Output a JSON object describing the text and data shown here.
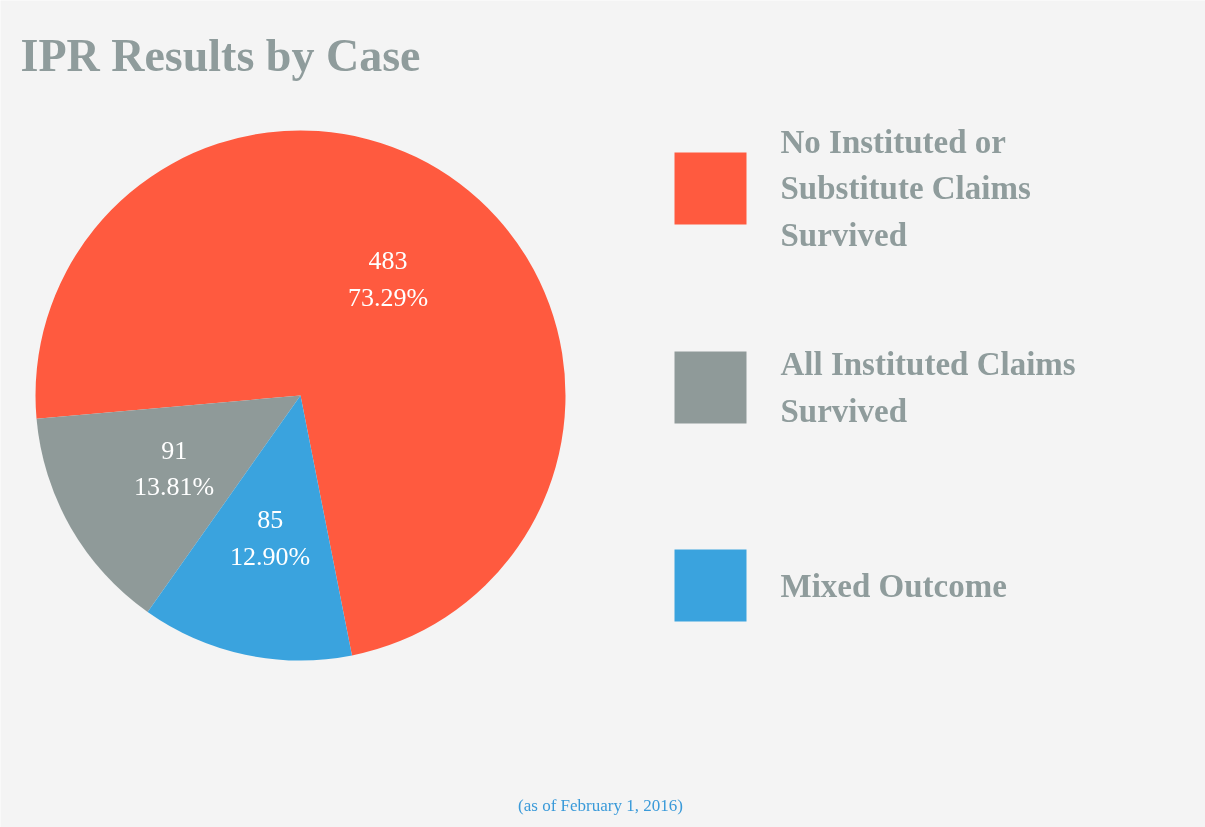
{
  "chart_data": {
    "type": "pie",
    "title": "IPR Results by Case",
    "categories": [
      "No Instituted or Substitute Claims Survived",
      "All Instituted Claims Survived",
      "Mixed Outcome"
    ],
    "values": [
      483,
      91,
      85
    ],
    "colors": [
      "#ff5a3f",
      "#8f9a99",
      "#3aa3de"
    ],
    "value_labels": [
      "483\n73.29%",
      "91\n13.81%",
      "85\n12.90%"
    ],
    "legend": "right",
    "annotations": [
      "(as of February 1, 2016)"
    ]
  }
}
